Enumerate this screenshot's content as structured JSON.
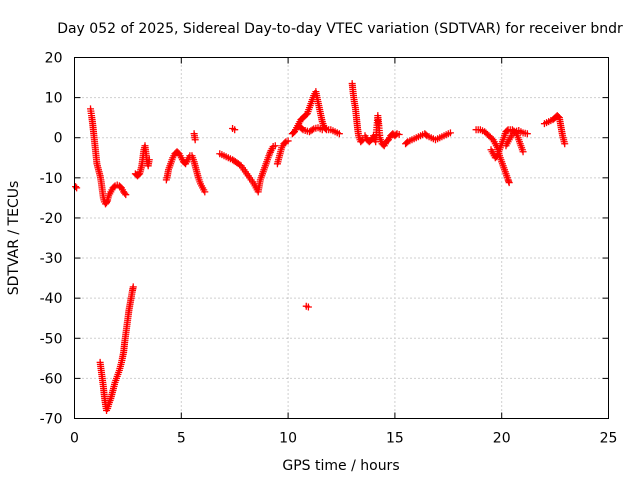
{
  "chart_data": {
    "type": "scatter",
    "title": "Day 052 of 2025, Sidereal Day-to-day VTEC variation (SDTVAR) for receiver bndr",
    "xlabel": "GPS time / hours",
    "ylabel": "SDTVAR / TECUs",
    "xlim": [
      0,
      25
    ],
    "ylim": [
      -70,
      20
    ],
    "xticks": [
      0,
      5,
      10,
      15,
      20,
      25
    ],
    "yticks": [
      20,
      10,
      0,
      -10,
      -20,
      -30,
      -40,
      -50,
      -60,
      -70
    ],
    "grid": true,
    "marker": "plus",
    "color": "#ff0000",
    "series": [
      {
        "name": "SDTVAR",
        "segments": [
          [
            [
              0.05,
              -12.2
            ],
            [
              0.1,
              -12.5
            ]
          ],
          [
            [
              0.75,
              7.2
            ],
            [
              0.8,
              5.5
            ],
            [
              0.85,
              3.5
            ],
            [
              0.9,
              1.0
            ],
            [
              0.95,
              -1.5
            ],
            [
              1.0,
              -4.0
            ],
            [
              1.05,
              -6.5
            ],
            [
              1.1,
              -7.5
            ],
            [
              1.15,
              -8.5
            ],
            [
              1.2,
              -9.5
            ],
            [
              1.25,
              -11.0
            ],
            [
              1.3,
              -13.0
            ],
            [
              1.35,
              -15.0
            ],
            [
              1.4,
              -16.0
            ],
            [
              1.45,
              -16.5
            ],
            [
              1.5,
              -16.2
            ],
            [
              1.55,
              -15.5
            ],
            [
              1.6,
              -14.5
            ],
            [
              1.7,
              -13.5
            ],
            [
              1.8,
              -12.5
            ],
            [
              1.9,
              -12.0
            ],
            [
              2.0,
              -11.8
            ],
            [
              2.1,
              -12.0
            ],
            [
              2.2,
              -12.5
            ],
            [
              2.3,
              -13.5
            ],
            [
              2.4,
              -14.2
            ]
          ],
          [
            [
              1.2,
              -56.0
            ],
            [
              1.25,
              -58.0
            ],
            [
              1.3,
              -60.0
            ],
            [
              1.35,
              -62.0
            ],
            [
              1.4,
              -64.5
            ],
            [
              1.45,
              -66.5
            ],
            [
              1.5,
              -68.0
            ],
            [
              1.55,
              -67.5
            ],
            [
              1.6,
              -66.5
            ],
            [
              1.7,
              -65.0
            ],
            [
              1.8,
              -63.0
            ],
            [
              1.9,
              -61.0
            ],
            [
              2.0,
              -59.5
            ],
            [
              2.1,
              -58.0
            ],
            [
              2.2,
              -56.0
            ],
            [
              2.3,
              -53.5
            ],
            [
              2.35,
              -51.0
            ],
            [
              2.4,
              -49.0
            ],
            [
              2.45,
              -47.0
            ],
            [
              2.5,
              -45.0
            ],
            [
              2.55,
              -43.0
            ],
            [
              2.6,
              -41.5
            ],
            [
              2.65,
              -40.0
            ],
            [
              2.7,
              -38.5
            ],
            [
              2.75,
              -37.2
            ]
          ],
          [
            [
              2.85,
              -9.0
            ],
            [
              2.95,
              -9.5
            ],
            [
              3.05,
              -9.0
            ],
            [
              3.1,
              -8.0
            ],
            [
              3.15,
              -7.0
            ],
            [
              3.2,
              -5.0
            ],
            [
              3.25,
              -3.0
            ],
            [
              3.3,
              -2.0
            ],
            [
              3.35,
              -4.0
            ],
            [
              3.4,
              -6.0
            ],
            [
              3.45,
              -7.0
            ],
            [
              3.5,
              -5.5
            ]
          ],
          [
            [
              4.3,
              -10.5
            ],
            [
              4.35,
              -9.5
            ],
            [
              4.4,
              -8.0
            ],
            [
              4.5,
              -6.5
            ],
            [
              4.6,
              -5.0
            ],
            [
              4.7,
              -4.0
            ],
            [
              4.8,
              -3.5
            ],
            [
              4.9,
              -4.0
            ],
            [
              5.0,
              -5.0
            ],
            [
              5.1,
              -6.0
            ],
            [
              5.2,
              -6.5
            ],
            [
              5.3,
              -5.5
            ],
            [
              5.4,
              -4.5
            ],
            [
              5.5,
              -4.5
            ],
            [
              5.6,
              -6.0
            ],
            [
              5.7,
              -8.0
            ],
            [
              5.8,
              -10.0
            ],
            [
              5.9,
              -11.5
            ],
            [
              6.0,
              -12.5
            ],
            [
              6.1,
              -13.5
            ]
          ],
          [
            [
              5.6,
              1.0
            ],
            [
              5.65,
              -0.5
            ]
          ],
          [
            [
              6.8,
              -4.0
            ],
            [
              6.9,
              -4.2
            ],
            [
              7.0,
              -4.5
            ],
            [
              7.2,
              -5.0
            ],
            [
              7.4,
              -5.5
            ],
            [
              7.6,
              -6.2
            ],
            [
              7.8,
              -7.0
            ],
            [
              8.0,
              -8.5
            ],
            [
              8.2,
              -10.0
            ],
            [
              8.4,
              -11.5
            ],
            [
              8.5,
              -12.5
            ],
            [
              8.6,
              -13.5
            ],
            [
              8.65,
              -12.0
            ],
            [
              8.7,
              -10.5
            ],
            [
              8.8,
              -9.0
            ],
            [
              8.9,
              -7.5
            ],
            [
              9.0,
              -6.0
            ],
            [
              9.1,
              -4.5
            ],
            [
              9.2,
              -3.2
            ],
            [
              9.3,
              -2.2
            ],
            [
              9.4,
              -2.0
            ]
          ],
          [
            [
              7.4,
              2.3
            ],
            [
              7.5,
              2.0
            ]
          ],
          [
            [
              9.5,
              -6.5
            ],
            [
              9.55,
              -5.5
            ],
            [
              9.6,
              -4.5
            ],
            [
              9.65,
              -3.5
            ],
            [
              9.7,
              -2.5
            ],
            [
              9.8,
              -1.5
            ],
            [
              9.9,
              -1.0
            ],
            [
              10.0,
              -0.8
            ]
          ],
          [
            [
              10.2,
              1.0
            ],
            [
              10.3,
              1.5
            ],
            [
              10.4,
              2.5
            ],
            [
              10.5,
              3.5
            ],
            [
              10.6,
              4.5
            ],
            [
              10.7,
              5.0
            ],
            [
              10.8,
              5.5
            ],
            [
              10.9,
              6.0
            ],
            [
              11.0,
              7.5
            ],
            [
              11.1,
              9.0
            ],
            [
              11.2,
              10.5
            ],
            [
              11.3,
              11.5
            ],
            [
              11.4,
              9.0
            ],
            [
              11.5,
              6.5
            ],
            [
              11.6,
              4.0
            ],
            [
              11.7,
              2.5
            ],
            [
              11.8,
              2.0
            ],
            [
              12.0,
              2.0
            ],
            [
              12.2,
              1.5
            ],
            [
              12.4,
              1.0
            ]
          ],
          [
            [
              10.5,
              3.0
            ],
            [
              10.6,
              2.5
            ],
            [
              10.7,
              2.0
            ],
            [
              10.8,
              1.8
            ],
            [
              11.0,
              1.5
            ],
            [
              11.2,
              2.2
            ],
            [
              11.4,
              2.5
            ],
            [
              11.6,
              2.0
            ]
          ],
          [
            [
              10.85,
              -42.0
            ],
            [
              10.95,
              -42.2
            ]
          ],
          [
            [
              13.0,
              13.5
            ],
            [
              13.05,
              11.0
            ],
            [
              13.1,
              9.0
            ],
            [
              13.15,
              7.5
            ],
            [
              13.2,
              5.0
            ],
            [
              13.25,
              2.5
            ],
            [
              13.3,
              0.5
            ],
            [
              13.4,
              -1.0
            ],
            [
              13.5,
              -0.5
            ]
          ],
          [
            [
              13.6,
              0.5
            ],
            [
              13.7,
              -0.5
            ],
            [
              13.8,
              -1.0
            ],
            [
              13.9,
              -0.5
            ],
            [
              14.0,
              0.5
            ],
            [
              14.1,
              -1.0
            ],
            [
              14.2,
              5.5
            ],
            [
              14.25,
              3.0
            ],
            [
              14.3,
              0.0
            ],
            [
              14.4,
              -1.5
            ],
            [
              14.5,
              -2.0
            ],
            [
              14.6,
              -1.0
            ],
            [
              14.7,
              -0.5
            ],
            [
              14.8,
              0.5
            ],
            [
              14.9,
              1.0
            ],
            [
              15.0,
              0.5
            ],
            [
              15.1,
              1.0
            ],
            [
              15.2,
              0.8
            ]
          ],
          [
            [
              15.5,
              -1.5
            ],
            [
              15.6,
              -1.0
            ],
            [
              15.8,
              -0.5
            ],
            [
              16.0,
              0.0
            ],
            [
              16.2,
              0.5
            ],
            [
              16.4,
              1.0
            ],
            [
              16.5,
              0.5
            ],
            [
              16.7,
              0.0
            ],
            [
              16.9,
              -0.5
            ],
            [
              17.1,
              0.0
            ],
            [
              17.3,
              0.5
            ],
            [
              17.5,
              1.0
            ],
            [
              17.6,
              1.2
            ]
          ],
          [
            [
              18.8,
              2.0
            ],
            [
              19.0,
              2.0
            ],
            [
              19.2,
              1.5
            ],
            [
              19.4,
              0.5
            ],
            [
              19.6,
              -0.5
            ],
            [
              19.7,
              -1.5
            ],
            [
              19.8,
              -2.5
            ],
            [
              19.9,
              -4.5
            ],
            [
              20.0,
              -6.0
            ],
            [
              20.1,
              -7.5
            ],
            [
              20.2,
              -9.0
            ],
            [
              20.3,
              -10.5
            ],
            [
              20.35,
              -11.2
            ]
          ],
          [
            [
              19.5,
              -3.0
            ],
            [
              19.6,
              -4.0
            ],
            [
              19.7,
              -5.0
            ],
            [
              19.8,
              -4.5
            ],
            [
              19.9,
              -3.0
            ],
            [
              20.0,
              -1.5
            ],
            [
              20.1,
              0.0
            ],
            [
              20.2,
              1.5
            ],
            [
              20.3,
              2.0
            ],
            [
              20.5,
              2.0
            ],
            [
              20.7,
              1.0
            ],
            [
              20.8,
              -0.5
            ],
            [
              20.9,
              -2.0
            ],
            [
              21.0,
              -3.5
            ]
          ],
          [
            [
              20.2,
              -2.0
            ],
            [
              20.4,
              0.0
            ],
            [
              20.6,
              1.5
            ],
            [
              20.8,
              1.8
            ],
            [
              21.0,
              1.2
            ],
            [
              21.2,
              1.0
            ]
          ],
          [
            [
              22.0,
              3.5
            ],
            [
              22.2,
              4.0
            ],
            [
              22.4,
              4.5
            ],
            [
              22.5,
              5.0
            ],
            [
              22.6,
              5.5
            ],
            [
              22.7,
              5.0
            ],
            [
              22.75,
              3.5
            ],
            [
              22.8,
              2.0
            ],
            [
              22.85,
              0.5
            ],
            [
              22.9,
              -0.5
            ],
            [
              22.95,
              -1.5
            ]
          ]
        ]
      }
    ]
  }
}
